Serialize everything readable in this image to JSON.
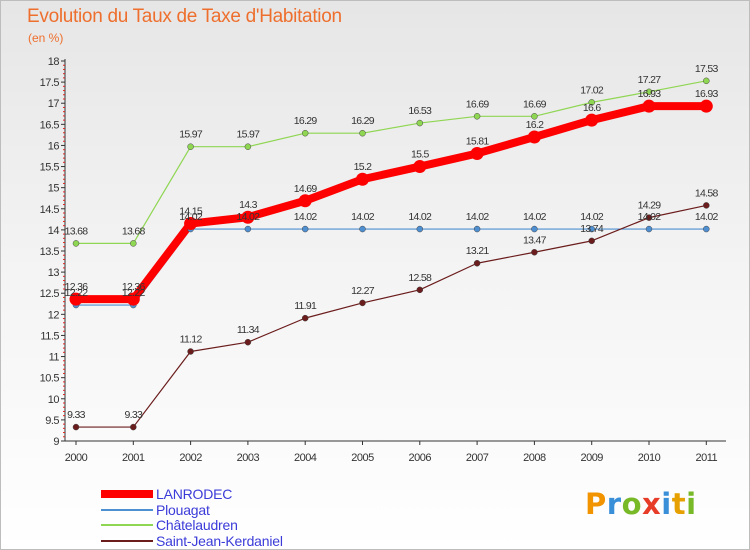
{
  "header": {
    "title": "Evolution du Taux de Taxe d'Habitation",
    "unit": "(en %)"
  },
  "chart_data": {
    "type": "line",
    "title": "Evolution du Taux de Taxe d'Habitation",
    "ylabel": "(en %)",
    "xlabel": "",
    "x": [
      "2000",
      "2001",
      "2002",
      "2003",
      "2004",
      "2005",
      "2006",
      "2007",
      "2008",
      "2009",
      "2010",
      "2011"
    ],
    "ylim": [
      9,
      18
    ],
    "yticks": [
      "9",
      "9.5",
      "10",
      "10.5",
      "11",
      "11.5",
      "12",
      "12.5",
      "13",
      "13.5",
      "14",
      "14.5",
      "15",
      "15.5",
      "16",
      "16.5",
      "17",
      "17.5",
      "18"
    ],
    "grid": false,
    "legend_position": "bottom-left",
    "series": [
      {
        "name": "LANRODEC",
        "color": "#ff0000",
        "values": [
          12.36,
          12.36,
          14.15,
          14.3,
          14.69,
          15.2,
          15.5,
          15.81,
          16.2,
          16.6,
          16.93,
          16.93
        ],
        "labels": [
          "12.36",
          "12.36",
          "14.15",
          "14.3",
          "14.69",
          "15.2",
          "15.5",
          "15.81",
          "16.2",
          "16.6",
          "16.93",
          "16.93"
        ]
      },
      {
        "name": "Plouagat",
        "color": "#4e8fd1",
        "values": [
          12.22,
          12.22,
          14.02,
          14.02,
          14.02,
          14.02,
          14.02,
          14.02,
          14.02,
          14.02,
          14.02,
          14.02
        ],
        "labels": [
          "12.22",
          "12.22",
          "14.02",
          "14.02",
          "14.02",
          "14.02",
          "14.02",
          "14.02",
          "14.02",
          "14.02",
          "14.02",
          "14.02"
        ]
      },
      {
        "name": "Châtelaudren",
        "color": "#8fd652",
        "values": [
          13.68,
          13.68,
          15.97,
          15.97,
          16.29,
          16.29,
          16.53,
          16.69,
          16.69,
          17.02,
          17.27,
          17.53
        ],
        "labels": [
          "13.68",
          "13.68",
          "15.97",
          "15.97",
          "16.29",
          "16.29",
          "16.53",
          "16.69",
          "16.69",
          "17.02",
          "17.27",
          "17.53"
        ]
      },
      {
        "name": "Saint-Jean-Kerdaniel",
        "color": "#6b1c1c",
        "values": [
          9.33,
          9.33,
          11.12,
          11.34,
          11.91,
          12.27,
          12.58,
          13.21,
          13.47,
          13.74,
          14.29,
          14.58
        ],
        "labels": [
          "9.33",
          "9.33",
          "11.12",
          "11.34",
          "11.91",
          "12.27",
          "12.58",
          "13.21",
          "13.47",
          "13.74",
          "14.29",
          "14.58"
        ]
      }
    ]
  },
  "logo": {
    "letters": [
      "P",
      "r",
      "o",
      "x",
      "i",
      "t",
      "i"
    ],
    "colors": [
      "#f29400",
      "#3a8fd9",
      "#78b928",
      "#e63c28",
      "#3a8fd9",
      "#e6a000",
      "#78b928"
    ]
  }
}
